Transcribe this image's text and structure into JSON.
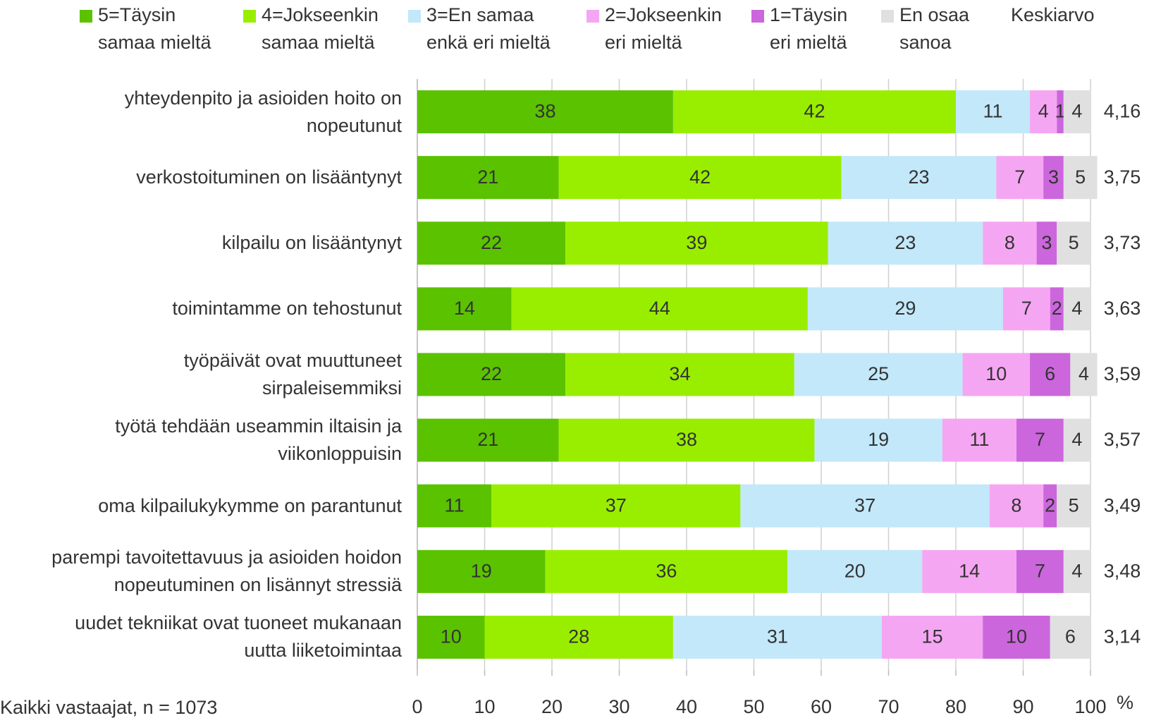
{
  "chart_data": {
    "type": "stacked_barh",
    "categories": [
      "yhteydenpito ja asioiden hoito on\nnopeutunut",
      "verkostoituminen on lisääntynyt",
      "kilpailu on lisääntynyt",
      "toimintamme on tehostunut",
      "työpäivät ovat muuttuneet\nsirpaleisemmiksi",
      "työtä tehdään useammin iltaisin ja\nviikonloppuisin",
      "oma kilpailukykymme on parantunut",
      "parempi tavoitettavuus ja asioiden hoidon\nnopeutuminen on lisännyt stressiä",
      "uudet tekniikat ovat tuoneet mukanaan\nuutta liiketoimintaa"
    ],
    "series": [
      {
        "name": "5=Täysin\nsamaa mieltä",
        "color": "#5bc200",
        "values": [
          38,
          21,
          22,
          14,
          22,
          21,
          11,
          19,
          10
        ]
      },
      {
        "name": "4=Jokseenkin\nsamaa mieltä",
        "color": "#99ee00",
        "values": [
          42,
          42,
          39,
          44,
          34,
          38,
          37,
          36,
          28
        ]
      },
      {
        "name": "3=En samaa\nenkä eri mieltä",
        "color": "#c2e8fa",
        "values": [
          11,
          23,
          23,
          29,
          25,
          19,
          37,
          20,
          31
        ]
      },
      {
        "name": "2=Jokseenkin\neri mieltä",
        "color": "#f5a6f2",
        "values": [
          4,
          7,
          8,
          7,
          10,
          11,
          8,
          14,
          15
        ]
      },
      {
        "name": "1=Täysin\neri mieltä",
        "color": "#cc66dd",
        "values": [
          1,
          3,
          3,
          2,
          6,
          7,
          2,
          7,
          10
        ]
      },
      {
        "name": "En osaa\nsanoa",
        "color": "#e0e0e0",
        "values": [
          4,
          5,
          5,
          4,
          4,
          4,
          5,
          4,
          6
        ]
      }
    ],
    "averages": {
      "name": "Keskiarvo",
      "values": [
        4.16,
        3.75,
        3.73,
        3.63,
        3.59,
        3.57,
        3.49,
        3.48,
        3.14
      ],
      "value_labels": [
        "4,16",
        "3,75",
        "3,73",
        "3,63",
        "3,59",
        "3,57",
        "3,49",
        "3,48",
        "3,14"
      ]
    },
    "xlim": [
      0,
      100
    ],
    "xticks": [
      0,
      10,
      20,
      30,
      40,
      50,
      60,
      70,
      80,
      90,
      100
    ],
    "x_unit": "%",
    "grid": true,
    "footnote": "Kaikki vastaajat, n = 1073"
  }
}
